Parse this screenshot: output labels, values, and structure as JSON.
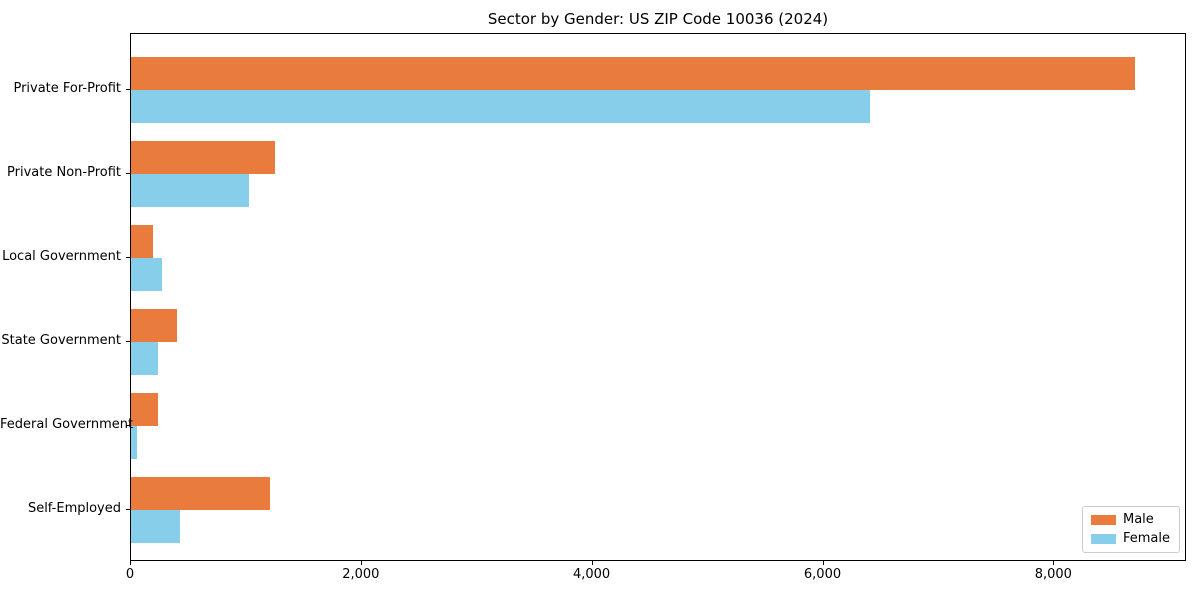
{
  "chart_data": {
    "type": "bar",
    "orientation": "horizontal",
    "title": "Sector by Gender: US ZIP Code 10036 (2024)",
    "categories": [
      "Private For-Profit",
      "Private Non-Profit",
      "Local Government",
      "State Government",
      "Federal Government",
      "Self-Employed"
    ],
    "series": [
      {
        "name": "Male",
        "color": "#E97C3C",
        "values": [
          8700,
          1250,
          190,
          400,
          230,
          1200
        ]
      },
      {
        "name": "Female",
        "color": "#87CEEB",
        "values": [
          6400,
          1020,
          270,
          230,
          50,
          420
        ]
      }
    ],
    "xlabel": "",
    "ylabel": "",
    "xlim": [
      0,
      9150
    ],
    "xticks": [
      0,
      2000,
      4000,
      6000,
      8000
    ],
    "xtick_labels": [
      "0",
      "2,000",
      "4,000",
      "6,000",
      "8,000"
    ],
    "grid": false,
    "legend": {
      "position": "lower right"
    }
  }
}
